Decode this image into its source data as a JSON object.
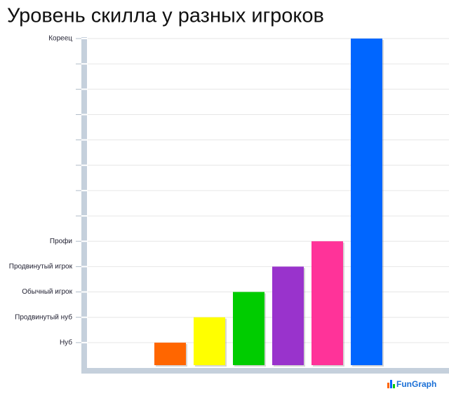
{
  "chart_data": {
    "type": "bar",
    "title": "Уровень скилла у разных игроков",
    "values": [
      1,
      2,
      3,
      4,
      5,
      13
    ],
    "colors": [
      "#ff6600",
      "#ffff00",
      "#00cc00",
      "#9933cc",
      "#ff3399",
      "#0066ff"
    ],
    "ylim": [
      0,
      13
    ],
    "yticks": [
      {
        "value": 1,
        "label": "Нуб"
      },
      {
        "value": 2,
        "label": "Продвинутый нуб"
      },
      {
        "value": 3,
        "label": "Обычный игрок"
      },
      {
        "value": 4,
        "label": "Продвинутый игрок"
      },
      {
        "value": 5,
        "label": "Профи"
      },
      {
        "value": 13,
        "label": "Кореец"
      }
    ],
    "minor_yticks": [
      6,
      7,
      8,
      9,
      10,
      11,
      12
    ],
    "grid": true,
    "watermark": "FunGraph"
  }
}
